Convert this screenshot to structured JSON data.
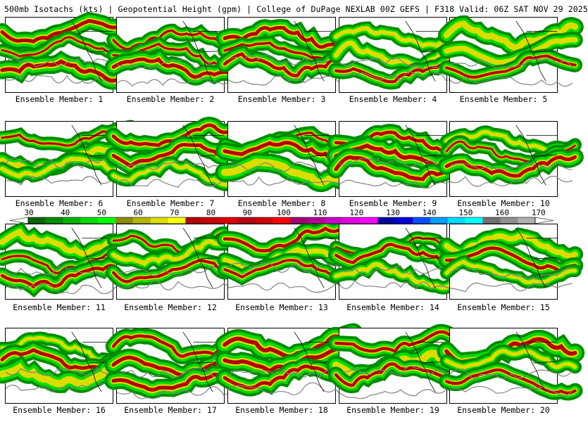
{
  "header": {
    "title": "500mb Isotachs (kts) | Geopotential Height (gpm) | College of DuPage NEXLAB   00Z GEFS | F318 Valid: 06Z SAT NOV 29 2025"
  },
  "panels": [
    {
      "label": "Ensemble Member: 1"
    },
    {
      "label": "Ensemble Member: 2"
    },
    {
      "label": "Ensemble Member: 3"
    },
    {
      "label": "Ensemble Member: 4"
    },
    {
      "label": "Ensemble Member: 5"
    },
    {
      "label": "Ensemble Member: 6"
    },
    {
      "label": "Ensemble Member: 7"
    },
    {
      "label": "Ensemble Member: 8"
    },
    {
      "label": "Ensemble Member: 9"
    },
    {
      "label": "Ensemble Member: 10"
    },
    {
      "label": "Ensemble Member: 11"
    },
    {
      "label": "Ensemble Member: 12"
    },
    {
      "label": "Ensemble Member: 13"
    },
    {
      "label": "Ensemble Member: 14"
    },
    {
      "label": "Ensemble Member: 15"
    },
    {
      "label": "Ensemble Member: 16"
    },
    {
      "label": "Ensemble Member: 17"
    },
    {
      "label": "Ensemble Member: 18"
    },
    {
      "label": "Ensemble Member: 19"
    },
    {
      "label": "Ensemble Member: 20"
    }
  ],
  "colorbar": {
    "ticks": [
      "30",
      "40",
      "50",
      "60",
      "70",
      "80",
      "90",
      "100",
      "110",
      "120",
      "130",
      "140",
      "150",
      "160",
      "170"
    ],
    "colors": [
      "#006400",
      "#008c00",
      "#00b400",
      "#00dc00",
      "#00ff00",
      "#8c8c00",
      "#b4b400",
      "#dcdc00",
      "#ffff00",
      "#b40000",
      "#c80000",
      "#dc0000",
      "#b40014",
      "#d20000",
      "#ff0000",
      "#a00070",
      "#b40096",
      "#c800c8",
      "#e100e1",
      "#ff00ff",
      "#0000a0",
      "#0000dc",
      "#0050ff",
      "#00a0ff",
      "#00dcff",
      "#00ffff",
      "#707070",
      "#909090",
      "#b0b0b0"
    ]
  }
}
